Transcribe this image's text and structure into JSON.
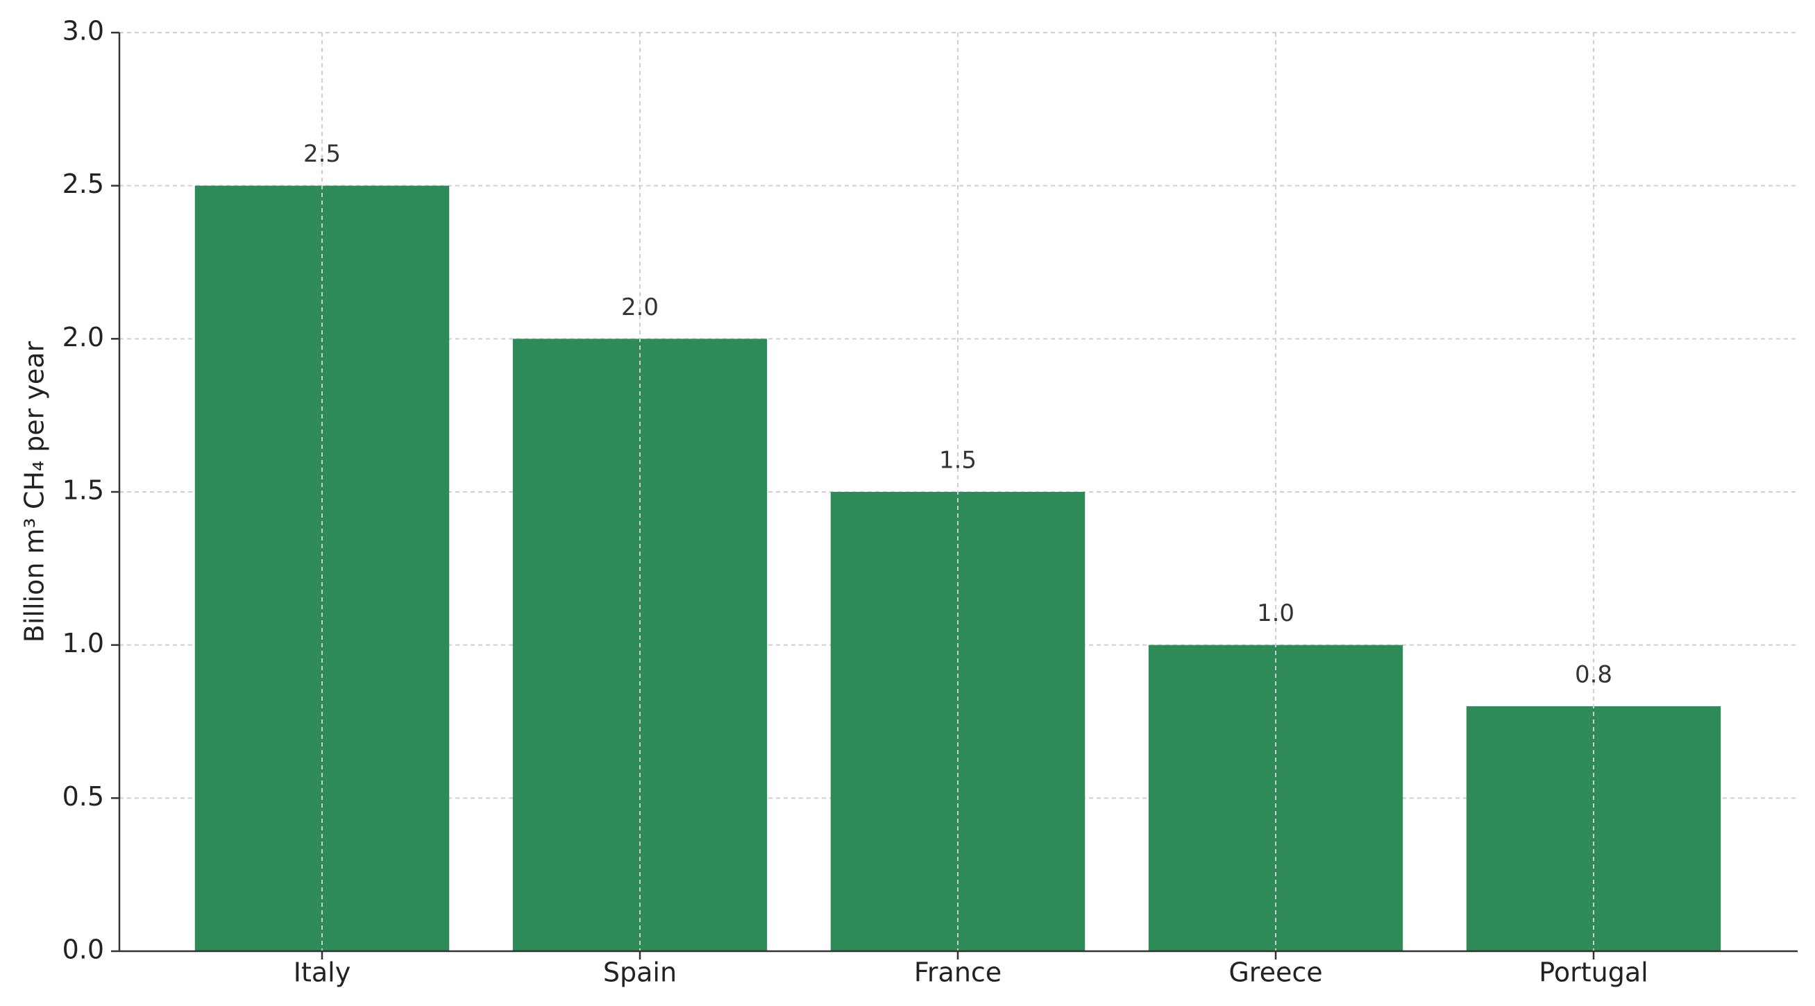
{
  "chart_data": {
    "type": "bar",
    "y_label": "Billion m³ CH₄ per year",
    "categories": [
      "Italy",
      "Spain",
      "France",
      "Greece",
      "Portugal"
    ],
    "values": [
      2.5,
      2.0,
      1.5,
      1.0,
      0.8
    ],
    "value_labels": [
      "2.5",
      "2.0",
      "1.5",
      "1.0",
      "0.8"
    ],
    "color": "#2e8b57",
    "ylim": [
      0,
      3
    ],
    "yticks": [
      {
        "value": 0,
        "label": "0.0"
      },
      0.5,
      {
        "value": 1,
        "label": "1.0"
      },
      1.5,
      {
        "value": 2,
        "label": "2.0"
      },
      2.5,
      {
        "value": 3,
        "label": "3.0"
      }
    ],
    "grid": true
  }
}
